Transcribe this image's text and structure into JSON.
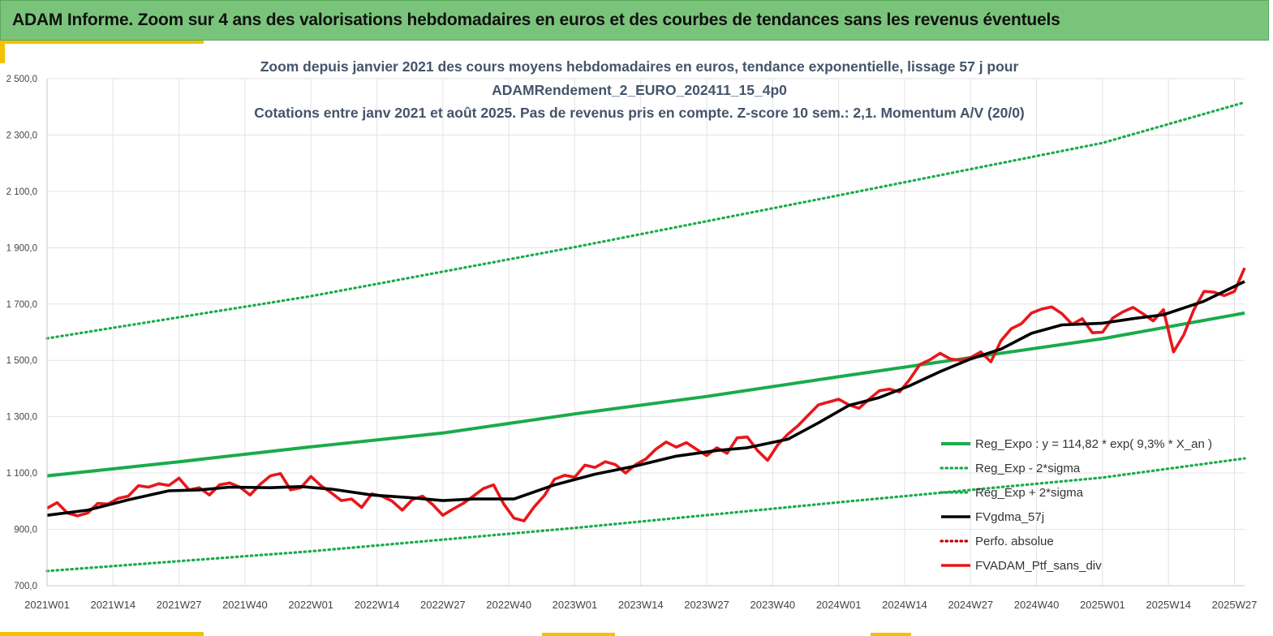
{
  "header": {
    "title": "ADAM Informe. Zoom sur 4 ans des valorisations hebdomadaires en euros et des courbes de tendances sans les revenus éventuels"
  },
  "colors": {
    "header_bg": "#79c47a",
    "accent": "#f2c200",
    "trend": "#1aab4b",
    "smoothed": "#000000",
    "portfolio": "#e8171b",
    "absolute": "#c00000"
  },
  "chart_data": {
    "type": "line",
    "title_lines": [
      "Zoom depuis janvier 2021 des cours moyens hebdomadaires  en euros, tendance exponentielle, lissage 57 j pour",
      "ADAMRendement_2_EURO_202411_15_4p0",
      "Cotations  entre janv 2021 et août 2025. Pas de revenus pris en compte. Z-score 10 sem.: 2,1. Momentum A/V (20/0)"
    ],
    "ylim": [
      700,
      2500
    ],
    "yticks": [
      "700,0",
      "900,0",
      "1 100,0",
      "1 300,0",
      "1 500,0",
      "1 700,0",
      "1 900,0",
      "2 100,0",
      "2 300,0",
      "2 500,0"
    ],
    "x_range_weeks": [
      0,
      236
    ],
    "xticks": [
      {
        "label": "2021W01",
        "week": 0
      },
      {
        "label": "2021W14",
        "week": 13
      },
      {
        "label": "2021W27",
        "week": 26
      },
      {
        "label": "2021W40",
        "week": 39
      },
      {
        "label": "2022W01",
        "week": 52
      },
      {
        "label": "2022W14",
        "week": 65
      },
      {
        "label": "2022W27",
        "week": 78
      },
      {
        "label": "2022W40",
        "week": 91
      },
      {
        "label": "2023W01",
        "week": 104
      },
      {
        "label": "2023W14",
        "week": 117
      },
      {
        "label": "2023W27",
        "week": 130
      },
      {
        "label": "2023W40",
        "week": 143
      },
      {
        "label": "2024W01",
        "week": 156
      },
      {
        "label": "2024W14",
        "week": 169
      },
      {
        "label": "2024W27",
        "week": 182
      },
      {
        "label": "2024W40",
        "week": 195
      },
      {
        "label": "2025W01",
        "week": 208
      },
      {
        "label": "2025W14",
        "week": 221
      },
      {
        "label": "2025W27",
        "week": 234
      }
    ],
    "grid": true,
    "legend_position": "bottom-right",
    "series": [
      {
        "name": "Reg_Expo : y = 114,82 * exp( 9,3% *  X_an )",
        "style": "solid-thick",
        "color": "#1aab4b",
        "points": [
          [
            0,
            1090
          ],
          [
            26,
            1140
          ],
          [
            52,
            1193
          ],
          [
            78,
            1242
          ],
          [
            104,
            1310
          ],
          [
            130,
            1372
          ],
          [
            156,
            1442
          ],
          [
            182,
            1510
          ],
          [
            208,
            1577
          ],
          [
            236,
            1668
          ]
        ]
      },
      {
        "name": "Reg_Exp - 2*sigma",
        "style": "dotted",
        "color": "#1aab4b",
        "points": [
          [
            0,
            752
          ],
          [
            52,
            822
          ],
          [
            104,
            905
          ],
          [
            156,
            996
          ],
          [
            208,
            1084
          ],
          [
            236,
            1152
          ]
        ]
      },
      {
        "name": "Reg_Exp + 2*sigma",
        "style": "dotted",
        "color": "#1aab4b",
        "points": [
          [
            0,
            1578
          ],
          [
            52,
            1728
          ],
          [
            104,
            1902
          ],
          [
            156,
            2086
          ],
          [
            208,
            2272
          ],
          [
            236,
            2416
          ]
        ]
      },
      {
        "name": "FVgdma_57j",
        "style": "solid",
        "color": "#000000",
        "points": [
          [
            0,
            950
          ],
          [
            8,
            968
          ],
          [
            16,
            1005
          ],
          [
            24,
            1037
          ],
          [
            30,
            1040
          ],
          [
            36,
            1050
          ],
          [
            44,
            1048
          ],
          [
            50,
            1052
          ],
          [
            56,
            1043
          ],
          [
            64,
            1022
          ],
          [
            72,
            1012
          ],
          [
            78,
            1002
          ],
          [
            84,
            1008
          ],
          [
            92,
            1008
          ],
          [
            100,
            1058
          ],
          [
            108,
            1096
          ],
          [
            116,
            1125
          ],
          [
            124,
            1160
          ],
          [
            132,
            1180
          ],
          [
            138,
            1190
          ],
          [
            146,
            1220
          ],
          [
            152,
            1278
          ],
          [
            158,
            1340
          ],
          [
            164,
            1368
          ],
          [
            170,
            1410
          ],
          [
            176,
            1460
          ],
          [
            182,
            1505
          ],
          [
            188,
            1540
          ],
          [
            194,
            1596
          ],
          [
            200,
            1626
          ],
          [
            208,
            1632
          ],
          [
            214,
            1648
          ],
          [
            220,
            1662
          ],
          [
            228,
            1710
          ],
          [
            236,
            1780
          ]
        ]
      },
      {
        "name": "Perfo. absolue",
        "style": "dotted",
        "color": "#c00000",
        "points": []
      },
      {
        "name": "FVADAM_Ptf_sans_div",
        "style": "solid-thick",
        "color": "#e8171b",
        "points": [
          [
            0,
            975
          ],
          [
            2,
            995
          ],
          [
            4,
            958
          ],
          [
            6,
            948
          ],
          [
            8,
            958
          ],
          [
            10,
            992
          ],
          [
            12,
            990
          ],
          [
            14,
            1010
          ],
          [
            16,
            1018
          ],
          [
            18,
            1055
          ],
          [
            20,
            1050
          ],
          [
            22,
            1062
          ],
          [
            24,
            1056
          ],
          [
            26,
            1082
          ],
          [
            28,
            1040
          ],
          [
            30,
            1048
          ],
          [
            32,
            1022
          ],
          [
            34,
            1058
          ],
          [
            36,
            1065
          ],
          [
            38,
            1050
          ],
          [
            40,
            1022
          ],
          [
            42,
            1060
          ],
          [
            44,
            1090
          ],
          [
            46,
            1098
          ],
          [
            48,
            1040
          ],
          [
            50,
            1048
          ],
          [
            52,
            1088
          ],
          [
            54,
            1055
          ],
          [
            56,
            1030
          ],
          [
            58,
            1002
          ],
          [
            60,
            1008
          ],
          [
            62,
            978
          ],
          [
            64,
            1026
          ],
          [
            66,
            1018
          ],
          [
            68,
            1000
          ],
          [
            70,
            968
          ],
          [
            72,
            1006
          ],
          [
            74,
            1018
          ],
          [
            76,
            988
          ],
          [
            78,
            950
          ],
          [
            80,
            972
          ],
          [
            82,
            992
          ],
          [
            84,
            1018
          ],
          [
            86,
            1045
          ],
          [
            88,
            1058
          ],
          [
            90,
            990
          ],
          [
            92,
            940
          ],
          [
            94,
            930
          ],
          [
            96,
            980
          ],
          [
            98,
            1020
          ],
          [
            100,
            1078
          ],
          [
            102,
            1092
          ],
          [
            104,
            1085
          ],
          [
            106,
            1128
          ],
          [
            108,
            1120
          ],
          [
            110,
            1140
          ],
          [
            112,
            1130
          ],
          [
            114,
            1100
          ],
          [
            116,
            1130
          ],
          [
            118,
            1150
          ],
          [
            120,
            1185
          ],
          [
            122,
            1210
          ],
          [
            124,
            1192
          ],
          [
            126,
            1208
          ],
          [
            128,
            1184
          ],
          [
            130,
            1162
          ],
          [
            132,
            1190
          ],
          [
            134,
            1170
          ],
          [
            136,
            1225
          ],
          [
            138,
            1228
          ],
          [
            140,
            1180
          ],
          [
            142,
            1145
          ],
          [
            144,
            1200
          ],
          [
            146,
            1238
          ],
          [
            148,
            1268
          ],
          [
            150,
            1305
          ],
          [
            152,
            1342
          ],
          [
            154,
            1352
          ],
          [
            156,
            1362
          ],
          [
            158,
            1342
          ],
          [
            160,
            1330
          ],
          [
            162,
            1362
          ],
          [
            164,
            1392
          ],
          [
            166,
            1398
          ],
          [
            168,
            1388
          ],
          [
            170,
            1432
          ],
          [
            172,
            1485
          ],
          [
            174,
            1502
          ],
          [
            176,
            1525
          ],
          [
            178,
            1505
          ],
          [
            180,
            1500
          ],
          [
            182,
            1510
          ],
          [
            184,
            1530
          ],
          [
            186,
            1495
          ],
          [
            188,
            1570
          ],
          [
            190,
            1612
          ],
          [
            192,
            1630
          ],
          [
            194,
            1668
          ],
          [
            196,
            1682
          ],
          [
            198,
            1690
          ],
          [
            200,
            1666
          ],
          [
            202,
            1628
          ],
          [
            204,
            1648
          ],
          [
            206,
            1598
          ],
          [
            208,
            1600
          ],
          [
            210,
            1650
          ],
          [
            212,
            1672
          ],
          [
            214,
            1688
          ],
          [
            216,
            1665
          ],
          [
            218,
            1640
          ],
          [
            220,
            1680
          ],
          [
            222,
            1530
          ],
          [
            224,
            1590
          ],
          [
            226,
            1680
          ],
          [
            228,
            1745
          ],
          [
            230,
            1742
          ],
          [
            232,
            1730
          ],
          [
            234,
            1745
          ],
          [
            236,
            1828
          ]
        ]
      }
    ]
  }
}
